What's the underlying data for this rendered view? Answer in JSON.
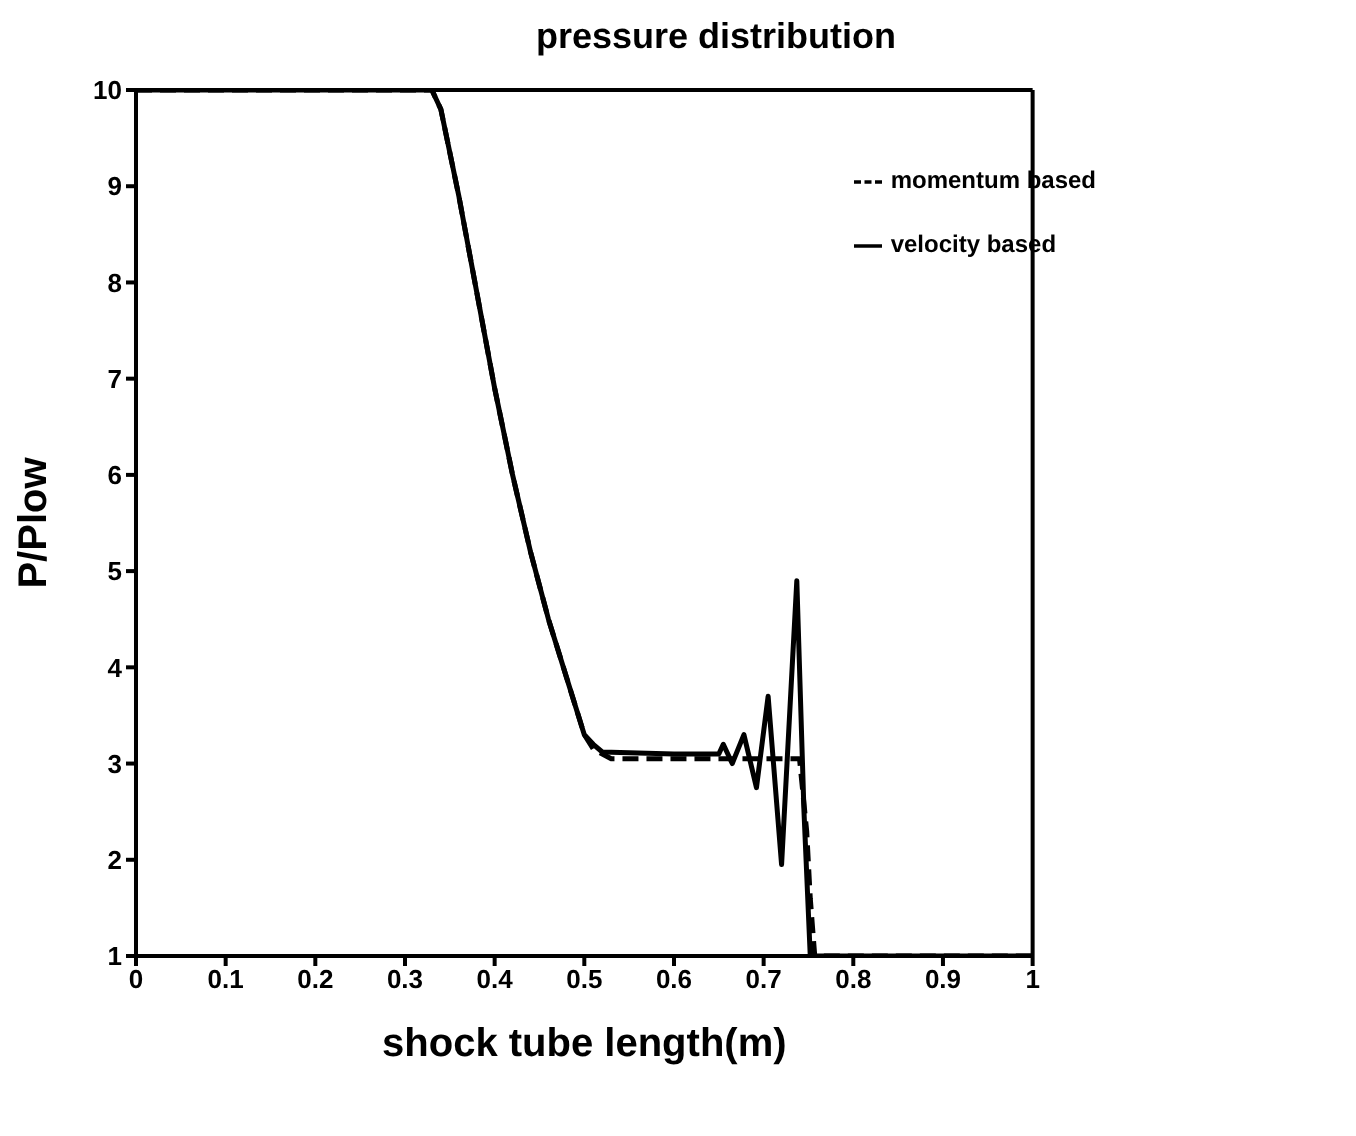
{
  "chart_data": {
    "type": "line",
    "title": "pressure distribution",
    "xlabel": "shock tube length(m)",
    "ylabel": "P/Plow",
    "xlim": [
      0,
      1
    ],
    "xticks": [
      0,
      0.1,
      0.2,
      0.3,
      0.4,
      0.5,
      0.6,
      0.7,
      0.8,
      0.9,
      1
    ],
    "ylim": [
      1,
      10
    ],
    "yticks": [
      1,
      2,
      3,
      4,
      5,
      6,
      7,
      8,
      9,
      10
    ],
    "grid": false,
    "legend": "top right",
    "marker": "none",
    "series": [
      {
        "name": "momentum based",
        "color": "#000000",
        "line_style": "dashed",
        "x": [
          0,
          0.33,
          0.34,
          0.36,
          0.38,
          0.4,
          0.42,
          0.44,
          0.46,
          0.48,
          0.5,
          0.51,
          0.53,
          0.6,
          0.65,
          0.7,
          0.74,
          0.748,
          0.752,
          0.757,
          1
        ],
        "values": [
          10,
          10,
          9.8,
          8.9,
          7.9,
          6.9,
          6.0,
          5.2,
          4.5,
          3.9,
          3.3,
          3.15,
          3.05,
          3.05,
          3.05,
          3.05,
          3.05,
          2.3,
          1.6,
          1,
          1
        ]
      },
      {
        "name": "velocity based",
        "color": "#000000",
        "line_style": "solid",
        "x": [
          0,
          0.33,
          0.34,
          0.36,
          0.38,
          0.4,
          0.42,
          0.44,
          0.46,
          0.48,
          0.5,
          0.51,
          0.52,
          0.6,
          0.65,
          0.655,
          0.665,
          0.678,
          0.692,
          0.705,
          0.72,
          0.737,
          0.745,
          0.752,
          1
        ],
        "values": [
          10,
          10,
          9.8,
          8.9,
          7.9,
          6.9,
          6.0,
          5.2,
          4.5,
          3.9,
          3.3,
          3.2,
          3.12,
          3.1,
          3.1,
          3.2,
          3.0,
          3.3,
          2.75,
          3.7,
          1.95,
          4.9,
          2.5,
          1,
          1
        ]
      }
    ]
  }
}
